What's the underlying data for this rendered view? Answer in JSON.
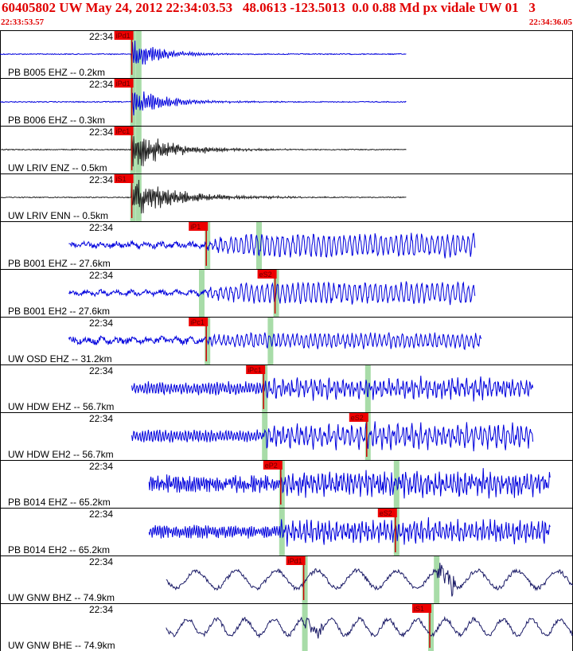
{
  "header": {
    "title": "60405802 UW May 24, 2012 22:34:03.53   48.0613 -123.5013  0.0 0.88 Md px vidale UW 01   3",
    "time_start": "22:33:53.57",
    "time_end": "22:34:36.05"
  },
  "colors": {
    "title": "#e00000",
    "trace_blue": "#0000dd",
    "trace_black": "#222222",
    "trace_navy": "#1a1a66",
    "pick_box": "#ee0000",
    "pick_window": "#a8dca8",
    "panel_border": "#000000"
  },
  "chart_data": {
    "type": "line",
    "title": "60405802 UW May 24, 2012 22:34:03.53   48.0613 -123.5013  0.0 0.88 Md px vidale UW 01   3",
    "x_start_label": "22:33:53.57",
    "x_end_label": "22:34:36.05",
    "series": [
      {
        "name": "PB B005 EHZ -- 0.2km",
        "time_label": "22:34",
        "pick": "iPd1",
        "color": "blue",
        "start": 0.0,
        "end": 0.71,
        "onset": 0.23,
        "pick_at": 0.23,
        "win_at": 0.24,
        "amp": 0.55,
        "noise": 0.02,
        "decay": 0.05,
        "period": 0.004,
        "kind": "impulsive"
      },
      {
        "name": "PB B006 EHZ -- 0.3km",
        "time_label": "22:34",
        "pick": "iPd1",
        "color": "blue",
        "start": 0.0,
        "end": 0.71,
        "onset": 0.23,
        "pick_at": 0.23,
        "win_at": 0.24,
        "amp": 0.5,
        "noise": 0.02,
        "decay": 0.06,
        "period": 0.004,
        "kind": "impulsive"
      },
      {
        "name": "UW LRIV ENZ -- 0.5km",
        "time_label": "22:34",
        "pick": "iPc1",
        "color": "black",
        "start": 0.0,
        "end": 0.71,
        "onset": 0.23,
        "pick_at": 0.23,
        "win_at": 0.24,
        "amp": 0.7,
        "noise": 0.02,
        "decay": 0.07,
        "period": 0.003,
        "kind": "impulsive"
      },
      {
        "name": "UW LRIV ENN -- 0.5km",
        "time_label": "22:34",
        "pick": "iS1",
        "color": "black",
        "start": 0.0,
        "end": 0.71,
        "onset": 0.23,
        "pick_at": 0.23,
        "win_at": 0.24,
        "amp": 0.65,
        "noise": 0.02,
        "decay": 0.08,
        "period": 0.003,
        "kind": "impulsive"
      },
      {
        "name": "PB B001 EHZ -- 27.6km",
        "time_label": "22:34",
        "pick": "iP1",
        "color": "blue",
        "start": 0.12,
        "end": 0.83,
        "onset": 0.36,
        "pick_at": 0.36,
        "win_at": 0.45,
        "amp": 0.55,
        "noise": 0.08,
        "decay": 1.0,
        "period": 0.009,
        "kind": "emergent"
      },
      {
        "name": "PB B001 EH2 -- 27.6km",
        "time_label": "22:34",
        "pick": "eS2",
        "color": "blue",
        "start": 0.12,
        "end": 0.83,
        "onset": 0.36,
        "pick_at": 0.48,
        "win_at": 0.35,
        "amp": 0.5,
        "noise": 0.06,
        "decay": 1.0,
        "period": 0.009,
        "kind": "emergent"
      },
      {
        "name": "UW OSD EHZ -- 31.2km",
        "time_label": "22:34",
        "pick": "iPc1",
        "color": "blue",
        "start": 0.12,
        "end": 0.84,
        "onset": 0.36,
        "pick_at": 0.36,
        "win_at": 0.47,
        "amp": 0.35,
        "noise": 0.1,
        "decay": 1.0,
        "period": 0.008,
        "kind": "emergent"
      },
      {
        "name": "UW HDW EHZ -- 56.7km",
        "time_label": "22:34",
        "pick": "iPc1",
        "color": "blue",
        "start": 0.23,
        "end": 0.93,
        "onset": 0.46,
        "pick_at": 0.46,
        "win_at": 0.64,
        "amp": 0.35,
        "noise": 0.15,
        "decay": 1.0,
        "period": 0.005,
        "kind": "noisy"
      },
      {
        "name": "UW HDW EH2 -- 56.7km",
        "time_label": "22:34",
        "pick": "eS2",
        "color": "blue",
        "start": 0.23,
        "end": 0.93,
        "onset": 0.46,
        "pick_at": 0.64,
        "win_at": 0.46,
        "amp": 0.5,
        "noise": 0.12,
        "decay": 1.0,
        "period": 0.005,
        "kind": "noisy"
      },
      {
        "name": "PB B014 EHZ -- 65.2km",
        "time_label": "22:34",
        "pick": "eP2",
        "color": "blue",
        "start": 0.26,
        "end": 0.96,
        "onset": 0.49,
        "pick_at": 0.49,
        "win_at": 0.69,
        "amp": 0.45,
        "noise": 0.3,
        "decay": 1.0,
        "period": 0.004,
        "kind": "noisy"
      },
      {
        "name": "PB B014 EH2 -- 65.2km",
        "time_label": "22:34",
        "pick": "eS2",
        "color": "blue",
        "start": 0.26,
        "end": 0.96,
        "onset": 0.49,
        "pick_at": 0.69,
        "win_at": 0.49,
        "amp": 0.45,
        "noise": 0.15,
        "decay": 1.0,
        "period": 0.004,
        "kind": "noisy"
      },
      {
        "name": "UW GNW BHZ -- 74.9km",
        "time_label": "22:34",
        "pick": "iPd1",
        "color": "navy",
        "start": 0.29,
        "end": 1.0,
        "onset": 0.53,
        "pick_at": 0.53,
        "win_at": 0.76,
        "amp": 0.55,
        "noise": 0.04,
        "decay": 1.0,
        "period": 0.07,
        "kind": "long"
      },
      {
        "name": "UW GNW BHE -- 74.9km",
        "time_label": "22:34",
        "pick": "iS1",
        "color": "navy",
        "start": 0.29,
        "end": 1.0,
        "onset": 0.53,
        "pick_at": 0.75,
        "win_at": 0.53,
        "amp": 0.5,
        "noise": 0.04,
        "decay": 1.0,
        "period": 0.05,
        "kind": "long"
      }
    ]
  }
}
